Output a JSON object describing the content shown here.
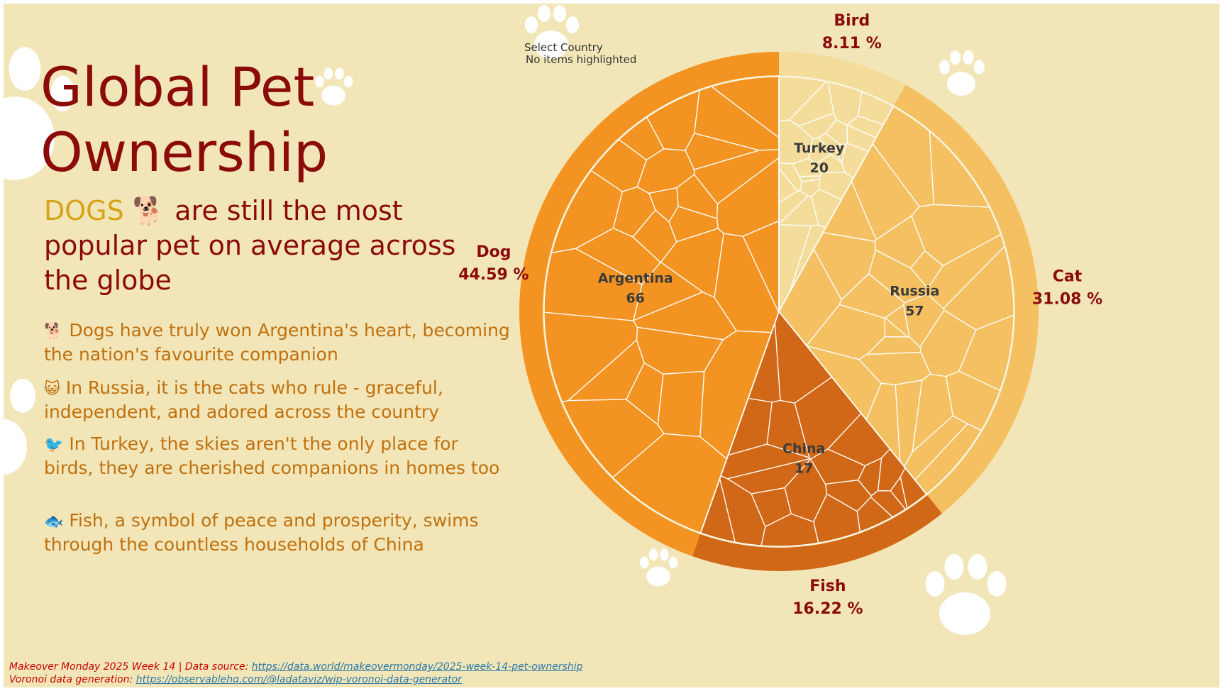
{
  "title_line1": "Global Pet",
  "title_line2": "Ownership",
  "headline": {
    "highlight": "DOGS",
    "icon": "dog-icon",
    "rest": "are still the most popular pet on average across the globe"
  },
  "facts": [
    {
      "icon": "dog-icon",
      "icon_glyph": "🐕",
      "text": "Dogs have truly won Argentina's heart, becoming the nation's favourite companion"
    },
    {
      "icon": "cat-face-icon",
      "icon_glyph": "😺",
      "text": "In Russia, it is the cats who rule - graceful, independent, and adored across the country"
    },
    {
      "icon": "bird-icon",
      "icon_glyph": "🐦",
      "text": "In Turkey, the skies aren't the only place for birds, they are cherished companions in homes too"
    },
    {
      "icon": "fish-icon",
      "icon_glyph": "🐟",
      "text": "Fish, a symbol of peace and prosperity, swims through the countless households of China"
    }
  ],
  "filter": {
    "label": "Select Country",
    "status": "No items highlighted"
  },
  "footer": {
    "line1_text": "Makeover Monday 2025 Week 14 | Data source: ",
    "line1_link": "https://data.world/makeovermonday/2025-week-14-pet-ownership",
    "line2_text": "Voronoi data generation: ",
    "line2_link": "https://observablehq.com/@ladataviz/wip-voronoi-data-generator"
  },
  "colors": {
    "background": "#f2e6b8",
    "dog": "#f39422",
    "cat": "#f4c062",
    "fish": "#d06817",
    "bird": "#f4dc9a",
    "title": "#8b0a0a",
    "highlight": "#d6a318",
    "fact_text": "#c0700e"
  },
  "chart_data": {
    "type": "voronoi-pie",
    "categories": [
      "Dog",
      "Cat",
      "Fish",
      "Bird"
    ],
    "values": [
      44.59,
      31.08,
      16.22,
      8.11
    ],
    "value_labels": [
      "44.59 %",
      "31.08 %",
      "16.22 %",
      "8.11 %"
    ],
    "unit": "%",
    "highlighted_countries": [
      {
        "name": "Argentina",
        "value": 66,
        "category": "Dog"
      },
      {
        "name": "Russia",
        "value": 57,
        "category": "Cat"
      },
      {
        "name": "China",
        "value": 17,
        "category": "Fish"
      },
      {
        "name": "Turkey",
        "value": 20,
        "category": "Bird"
      }
    ]
  }
}
